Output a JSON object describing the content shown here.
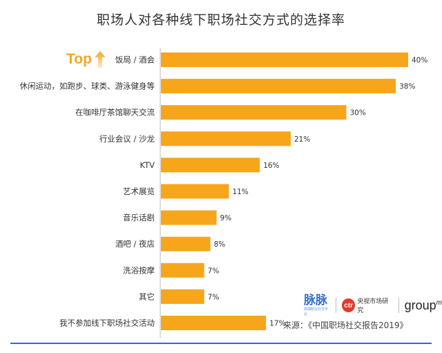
{
  "title": "职场人对各种线下职场社交方式的选择率",
  "top_badge": {
    "text": "Top",
    "icon": "arrow-up-icon"
  },
  "source": "来源：《中国职场社交报告2019》",
  "logos": {
    "maimai": "脉脉",
    "maimai_sub": "高端职业社交平台",
    "ctr_mark": "ctr",
    "ctr_text": "央视市场研究",
    "groupm": "group",
    "groupm_sup": "m"
  },
  "colors": {
    "bar": "#f7a51b",
    "axis": "#bbbbbb",
    "title": "#333333",
    "accent": "#f5a623",
    "rule": "#2a6ccf"
  },
  "chart_data": {
    "type": "bar",
    "orientation": "horizontal",
    "title": "职场人对各种线下职场社交方式的选择率",
    "categories": [
      "饭局 / 酒会",
      "休闲运动，如跑步、球类、游泳健身等",
      "在咖啡厅茶馆聊天交流",
      "行业会议 / 沙龙",
      "KTV",
      "艺术展览",
      "音乐话剧",
      "酒吧 / 夜店",
      "洗浴按摩",
      "其它",
      "我不参加线下职场社交活动"
    ],
    "values": [
      40,
      38,
      30,
      21,
      16,
      11,
      9,
      8,
      7,
      7,
      17
    ],
    "value_labels": [
      "40%",
      "38%",
      "30%",
      "21%",
      "16%",
      "11%",
      "9%",
      "8%",
      "7%",
      "7%",
      "17%"
    ],
    "unit": "%",
    "xlim": [
      0,
      40
    ],
    "grid": false,
    "legend": "none"
  }
}
